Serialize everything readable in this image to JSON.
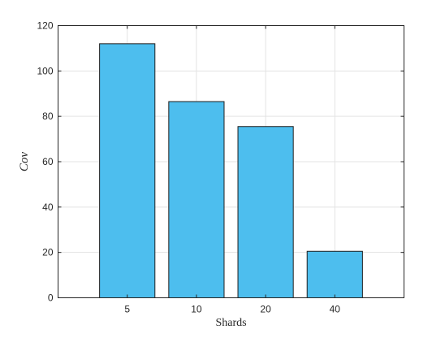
{
  "chart_data": {
    "type": "bar",
    "categories": [
      "5",
      "10",
      "20",
      "40"
    ],
    "values": [
      112,
      86.5,
      75.5,
      20.5
    ],
    "xlabel": "Shards",
    "ylabel": "Cov",
    "ylim": [
      0,
      120
    ],
    "yticks": [
      0,
      20,
      40,
      60,
      80,
      100,
      120
    ],
    "grid": true,
    "bar_color": "#4DBEEE"
  }
}
